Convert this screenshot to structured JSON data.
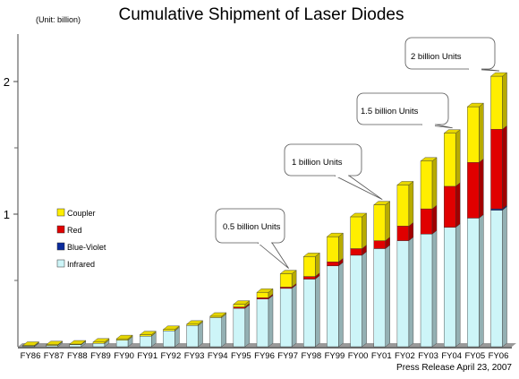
{
  "chart_data": {
    "type": "bar",
    "stacked": true,
    "title": "Cumulative Shipment of Laser Diodes",
    "unit_label": "(Unit: billion)",
    "footnote": "Press Release April 23, 2007",
    "ylim": [
      0,
      2.4
    ],
    "y_ticks": [
      {
        "value": 1,
        "label": "1"
      },
      {
        "value": 2,
        "label": "2"
      }
    ],
    "y_minor_ticks": [
      0.5,
      1.5
    ],
    "categories": [
      "FY86",
      "FY87",
      "FY88",
      "FY89",
      "FY90",
      "FY91",
      "FY92",
      "FY93",
      "FY94",
      "FY95",
      "FY96",
      "FY97",
      "FY98",
      "FY99",
      "FY00",
      "FY01",
      "FY02",
      "FY03",
      "FY04",
      "FY05",
      "FY06"
    ],
    "series": [
      {
        "name": "Infrared",
        "color": "#cdf5f8",
        "values": [
          0.005,
          0.01,
          0.015,
          0.025,
          0.05,
          0.08,
          0.12,
          0.16,
          0.22,
          0.29,
          0.36,
          0.44,
          0.51,
          0.61,
          0.69,
          0.74,
          0.8,
          0.85,
          0.9,
          0.97,
          1.03
        ]
      },
      {
        "name": "Blue-Violet",
        "color": "#0a2a9c",
        "values": [
          0,
          0,
          0,
          0,
          0,
          0,
          0,
          0,
          0,
          0,
          0,
          0,
          0,
          0,
          0,
          0,
          0,
          0,
          0,
          0,
          0.01
        ]
      },
      {
        "name": "Red",
        "color": "#e00000",
        "values": [
          0,
          0,
          0,
          0,
          0,
          0,
          0,
          0,
          0,
          0.01,
          0.01,
          0.01,
          0.02,
          0.03,
          0.05,
          0.06,
          0.11,
          0.19,
          0.31,
          0.42,
          0.6
        ]
      },
      {
        "name": "Coupler",
        "color": "#ffee00",
        "values": [
          0.005,
          0.005,
          0.005,
          0.01,
          0.01,
          0.01,
          0.01,
          0.01,
          0.01,
          0.02,
          0.04,
          0.1,
          0.15,
          0.19,
          0.24,
          0.27,
          0.31,
          0.36,
          0.4,
          0.42,
          0.4
        ]
      }
    ],
    "legend_position": "left-middle",
    "annotations": [
      {
        "text": "0.5 billion Units",
        "category": "FY97"
      },
      {
        "text": "1 billion Units",
        "category": "FY01"
      },
      {
        "text": "1.5 billion Units",
        "category": "FY04"
      },
      {
        "text": "2 billion Units",
        "category": "FY06"
      }
    ],
    "grid": false
  }
}
